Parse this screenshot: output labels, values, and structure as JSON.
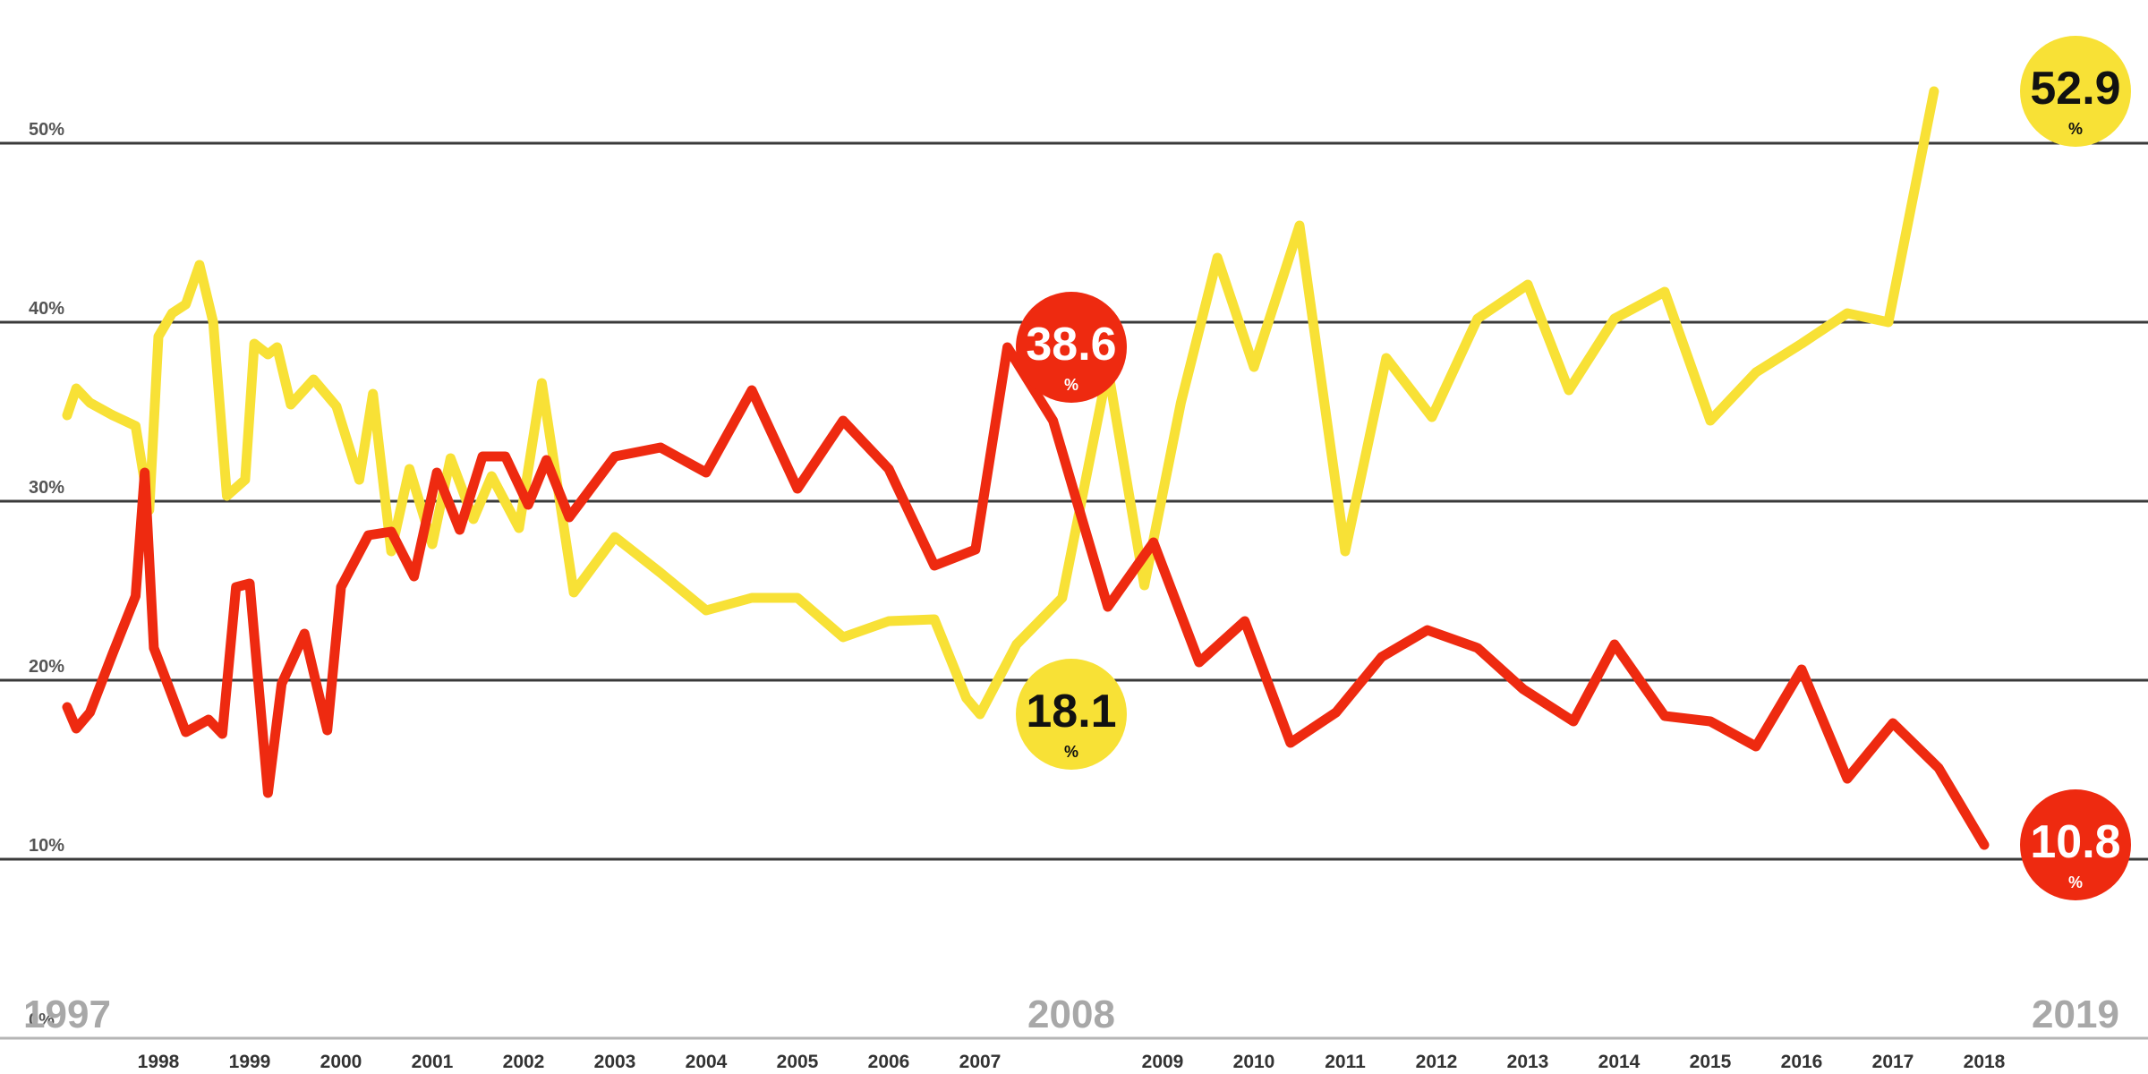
{
  "chart_data": {
    "type": "line",
    "title": "",
    "xlabel": "",
    "ylabel": "",
    "ylim": [
      0,
      55
    ],
    "xlim": [
      1997,
      2019.6
    ],
    "y_ticks": [
      {
        "value": 0,
        "label": "0%"
      },
      {
        "value": 10,
        "label": "10%"
      },
      {
        "value": 20,
        "label": "20%"
      },
      {
        "value": 30,
        "label": "30%"
      },
      {
        "value": 40,
        "label": "40%"
      },
      {
        "value": 50,
        "label": "50%"
      }
    ],
    "gridlines": [
      10,
      20,
      30,
      40,
      50
    ],
    "x_ticks": [
      {
        "value": 1998,
        "label": "1998"
      },
      {
        "value": 1999,
        "label": "1999"
      },
      {
        "value": 2000,
        "label": "2000"
      },
      {
        "value": 2001,
        "label": "2001"
      },
      {
        "value": 2002,
        "label": "2002"
      },
      {
        "value": 2003,
        "label": "2003"
      },
      {
        "value": 2004,
        "label": "2004"
      },
      {
        "value": 2005,
        "label": "2005"
      },
      {
        "value": 2006,
        "label": "2006"
      },
      {
        "value": 2007,
        "label": "2007"
      },
      {
        "value": 2009,
        "label": "2009"
      },
      {
        "value": 2010,
        "label": "2010"
      },
      {
        "value": 2011,
        "label": "2011"
      },
      {
        "value": 2012,
        "label": "2012"
      },
      {
        "value": 2013,
        "label": "2013"
      },
      {
        "value": 2014,
        "label": "2014"
      },
      {
        "value": 2015,
        "label": "2015"
      },
      {
        "value": 2016,
        "label": "2016"
      },
      {
        "value": 2017,
        "label": "2017"
      },
      {
        "value": 2018,
        "label": "2018"
      }
    ],
    "major_years": [
      {
        "value": 1997,
        "label": "1997"
      },
      {
        "value": 2008,
        "label": "2008"
      },
      {
        "value": 2019,
        "label": "2019"
      }
    ],
    "grid": true,
    "legend": "none",
    "series": [
      {
        "color": "#f8e136",
        "points": [
          [
            1997.0,
            34.8
          ],
          [
            1997.1,
            36.3
          ],
          [
            1997.25,
            35.5
          ],
          [
            1997.5,
            34.8
          ],
          [
            1997.75,
            34.2
          ],
          [
            1997.9,
            29.5
          ],
          [
            1998.0,
            39.2
          ],
          [
            1998.15,
            40.5
          ],
          [
            1998.3,
            41.0
          ],
          [
            1998.45,
            43.2
          ],
          [
            1998.6,
            40.0
          ],
          [
            1998.75,
            30.3
          ],
          [
            1998.95,
            31.2
          ],
          [
            1999.05,
            38.8
          ],
          [
            1999.2,
            38.2
          ],
          [
            1999.3,
            38.6
          ],
          [
            1999.45,
            35.4
          ],
          [
            1999.7,
            36.8
          ],
          [
            1999.95,
            35.3
          ],
          [
            2000.2,
            31.2
          ],
          [
            2000.35,
            36.0
          ],
          [
            2000.55,
            27.2
          ],
          [
            2000.75,
            31.8
          ],
          [
            2001.0,
            27.6
          ],
          [
            2001.2,
            32.4
          ],
          [
            2001.45,
            29.0
          ],
          [
            2001.65,
            31.4
          ],
          [
            2001.95,
            28.5
          ],
          [
            2002.2,
            36.6
          ],
          [
            2002.55,
            24.9
          ],
          [
            2003.0,
            28.0
          ],
          [
            2003.5,
            26.0
          ],
          [
            2004.0,
            23.9
          ],
          [
            2004.5,
            24.6
          ],
          [
            2005.0,
            24.6
          ],
          [
            2005.5,
            22.4
          ],
          [
            2006.0,
            23.3
          ],
          [
            2006.5,
            23.4
          ],
          [
            2006.85,
            19.0
          ],
          [
            2007.0,
            18.1
          ],
          [
            2007.4,
            22.0
          ],
          [
            2007.9,
            24.6
          ],
          [
            2008.4,
            37.4
          ],
          [
            2008.8,
            25.3
          ],
          [
            2009.2,
            35.5
          ],
          [
            2009.6,
            43.6
          ],
          [
            2010.0,
            37.5
          ],
          [
            2010.5,
            45.4
          ],
          [
            2011.0,
            27.2
          ],
          [
            2011.45,
            38.0
          ],
          [
            2011.95,
            34.7
          ],
          [
            2012.45,
            40.2
          ],
          [
            2013.0,
            42.1
          ],
          [
            2013.45,
            36.2
          ],
          [
            2013.95,
            40.2
          ],
          [
            2014.5,
            41.7
          ],
          [
            2015.0,
            34.5
          ],
          [
            2015.5,
            37.2
          ],
          [
            2016.0,
            38.8
          ],
          [
            2016.5,
            40.5
          ],
          [
            2016.95,
            40.0
          ],
          [
            2017.45,
            52.9
          ]
        ]
      },
      {
        "color": "#ee2a10",
        "points": [
          [
            1997.0,
            18.5
          ],
          [
            1997.1,
            17.3
          ],
          [
            1997.25,
            18.2
          ],
          [
            1997.5,
            21.5
          ],
          [
            1997.75,
            24.7
          ],
          [
            1997.85,
            31.6
          ],
          [
            1997.95,
            21.8
          ],
          [
            1998.1,
            19.8
          ],
          [
            1998.3,
            17.1
          ],
          [
            1998.55,
            17.8
          ],
          [
            1998.7,
            17.0
          ],
          [
            1998.85,
            25.2
          ],
          [
            1999.0,
            25.4
          ],
          [
            1999.2,
            13.7
          ],
          [
            1999.35,
            19.8
          ],
          [
            1999.6,
            22.6
          ],
          [
            1999.85,
            17.2
          ],
          [
            2000.0,
            25.2
          ],
          [
            2000.3,
            28.1
          ],
          [
            2000.55,
            28.3
          ],
          [
            2000.8,
            25.8
          ],
          [
            2001.05,
            31.6
          ],
          [
            2001.3,
            28.4
          ],
          [
            2001.55,
            32.5
          ],
          [
            2001.8,
            32.5
          ],
          [
            2002.05,
            29.8
          ],
          [
            2002.25,
            32.3
          ],
          [
            2002.5,
            29.1
          ],
          [
            2003.0,
            32.5
          ],
          [
            2003.5,
            33.0
          ],
          [
            2004.0,
            31.6
          ],
          [
            2004.5,
            36.2
          ],
          [
            2005.0,
            30.7
          ],
          [
            2005.5,
            34.5
          ],
          [
            2006.0,
            31.8
          ],
          [
            2006.5,
            26.4
          ],
          [
            2006.95,
            27.3
          ],
          [
            2007.3,
            38.6
          ],
          [
            2007.8,
            34.5
          ],
          [
            2008.4,
            24.1
          ],
          [
            2008.9,
            27.7
          ],
          [
            2009.4,
            21.0
          ],
          [
            2009.9,
            23.3
          ],
          [
            2010.4,
            16.5
          ],
          [
            2010.9,
            18.2
          ],
          [
            2011.4,
            21.3
          ],
          [
            2011.9,
            22.8
          ],
          [
            2012.45,
            21.8
          ],
          [
            2012.95,
            19.5
          ],
          [
            2013.5,
            17.7
          ],
          [
            2013.95,
            22.0
          ],
          [
            2014.5,
            18.0
          ],
          [
            2015.0,
            17.7
          ],
          [
            2015.5,
            16.3
          ],
          [
            2016.0,
            20.6
          ],
          [
            2016.5,
            14.5
          ],
          [
            2017.0,
            17.6
          ],
          [
            2017.5,
            15.1
          ],
          [
            2018.0,
            10.8
          ]
        ]
      }
    ],
    "callouts": [
      {
        "value": "52.9",
        "unit": "%",
        "x": 2019.0,
        "y": 52.9,
        "fill": "#f8e136",
        "text_color": "#111111"
      },
      {
        "value": "18.1",
        "unit": "%",
        "x": 2008.0,
        "y": 18.1,
        "fill": "#f8e136",
        "text_color": "#111111"
      },
      {
        "value": "38.6",
        "unit": "%",
        "x": 2008.0,
        "y": 38.6,
        "fill": "#ee2a10",
        "text_color": "#ffffff"
      },
      {
        "value": "10.8",
        "unit": "%",
        "x": 2019.0,
        "y": 10.8,
        "fill": "#ee2a10",
        "text_color": "#ffffff"
      }
    ]
  }
}
